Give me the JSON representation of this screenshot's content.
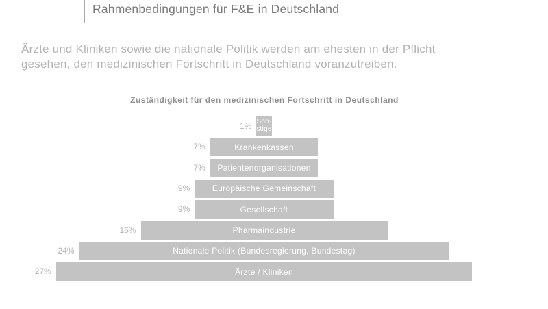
{
  "slide": {
    "title": "Rahmenbedingungen für F&E in Deutschland",
    "subtitle": "Ärzte und Kliniken sowie die nationale Politik werden am ehesten in der Pflicht\ngesehen, den medizinischen Fortschritt in Deutschland voranzutreiben."
  },
  "chart_data": {
    "type": "bar",
    "orientation": "horizontal-centered-pyramid",
    "title": "Zuständigkeit für den medizinischen Fortschritt in Deutschland",
    "unit": "%",
    "categories": [
      "Sonstige",
      "Krankenkassen",
      "Patientenorganisationen",
      "Europäische Gemeinschaft",
      "Gesellschaft",
      "Pharmaindustrie",
      "Nationale Politik (Bundesregierung, Bundestag)",
      "Ärzte / Kliniken"
    ],
    "values": [
      1,
      7,
      7,
      9,
      9,
      16,
      24,
      27
    ],
    "value_labels": [
      "1%",
      "7%",
      "7%",
      "9%",
      "9%",
      "16%",
      "24%",
      "27%"
    ],
    "bar_display_labels": [
      "Son-\nstige",
      "Krankenkassen",
      "Patientenorganisationen",
      "Europäische Gemeinschaft",
      "Gesellschaft",
      "Pharmaindustrie",
      "Nationale Politik (Bundesregierung, Bundestag)",
      "Ärzte / Kliniken"
    ],
    "xlim": [
      0,
      30
    ],
    "grid": false,
    "legend": false,
    "colors": {
      "bar_fill": "#c3c3c3",
      "bar_text": "#ffffff",
      "value_label_text": "#b3b3b3",
      "chart_title_text": "#8e8e8e",
      "slide_title_text": "#7a7a7a",
      "subtitle_text": "#b3b3b3",
      "accent_line": "#a9a9a9"
    }
  }
}
